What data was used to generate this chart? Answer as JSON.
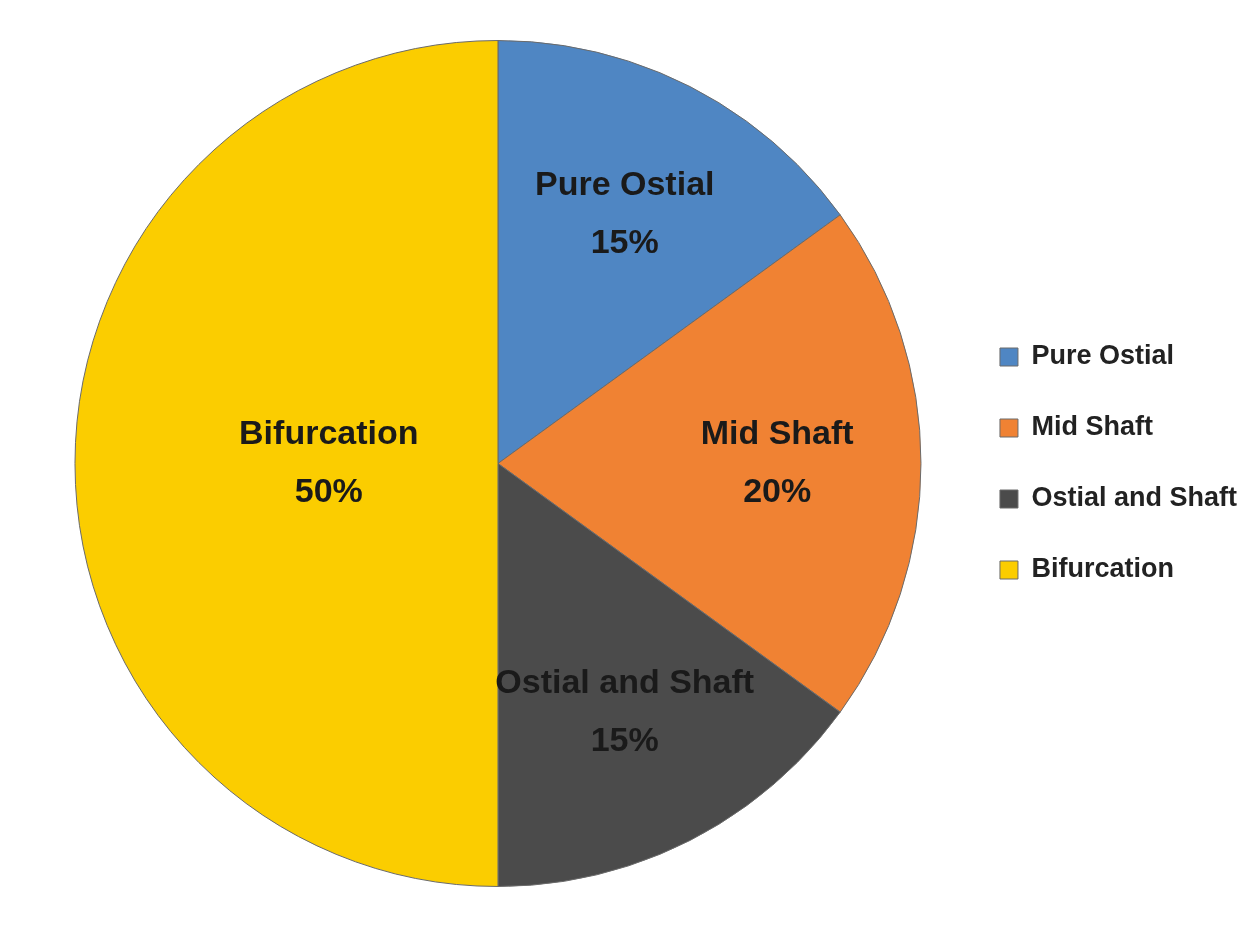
{
  "chart_data": {
    "type": "pie",
    "categories": [
      "Pure Ostial",
      "Mid Shaft",
      "Ostial and Shaft",
      "Bifurcation"
    ],
    "values": [
      15,
      20,
      15,
      50
    ],
    "value_labels": [
      "15%",
      "20%",
      "15%",
      "50%"
    ],
    "colors": [
      "#4f86c3",
      "#f08233",
      "#4b4b4b",
      "#fbcd00"
    ],
    "legend": "right"
  }
}
